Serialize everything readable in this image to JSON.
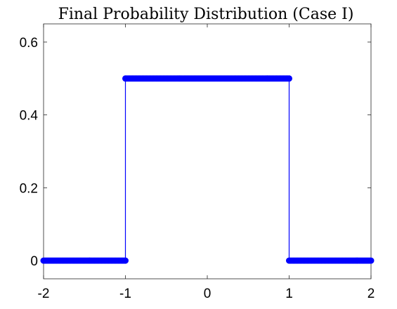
{
  "chart_data": {
    "type": "line",
    "title": "Final Probability Distribution (Case I)",
    "xlabel": "",
    "ylabel": "",
    "xlim": [
      -2,
      2
    ],
    "ylim": [
      -0.05,
      0.65
    ],
    "x_ticks": [
      -2,
      -1,
      0,
      1,
      2
    ],
    "y_ticks": [
      0,
      0.2,
      0.4,
      0.6
    ],
    "x_tick_labels": [
      "-2",
      "-1",
      "0",
      "1",
      "2"
    ],
    "y_tick_labels": [
      "0",
      "0.2",
      "0.4",
      "0.6"
    ],
    "grid": false,
    "series": [
      {
        "color": "#0000ff",
        "marker": "filled-circle",
        "segments": [
          {
            "x_start": -2,
            "x_end": -1,
            "y": 0
          },
          {
            "x_start": -1,
            "x_end": 1,
            "y": 0.5
          },
          {
            "x_start": 1,
            "x_end": 2,
            "y": 0
          }
        ],
        "steps_at": [
          -1,
          1
        ]
      }
    ]
  }
}
